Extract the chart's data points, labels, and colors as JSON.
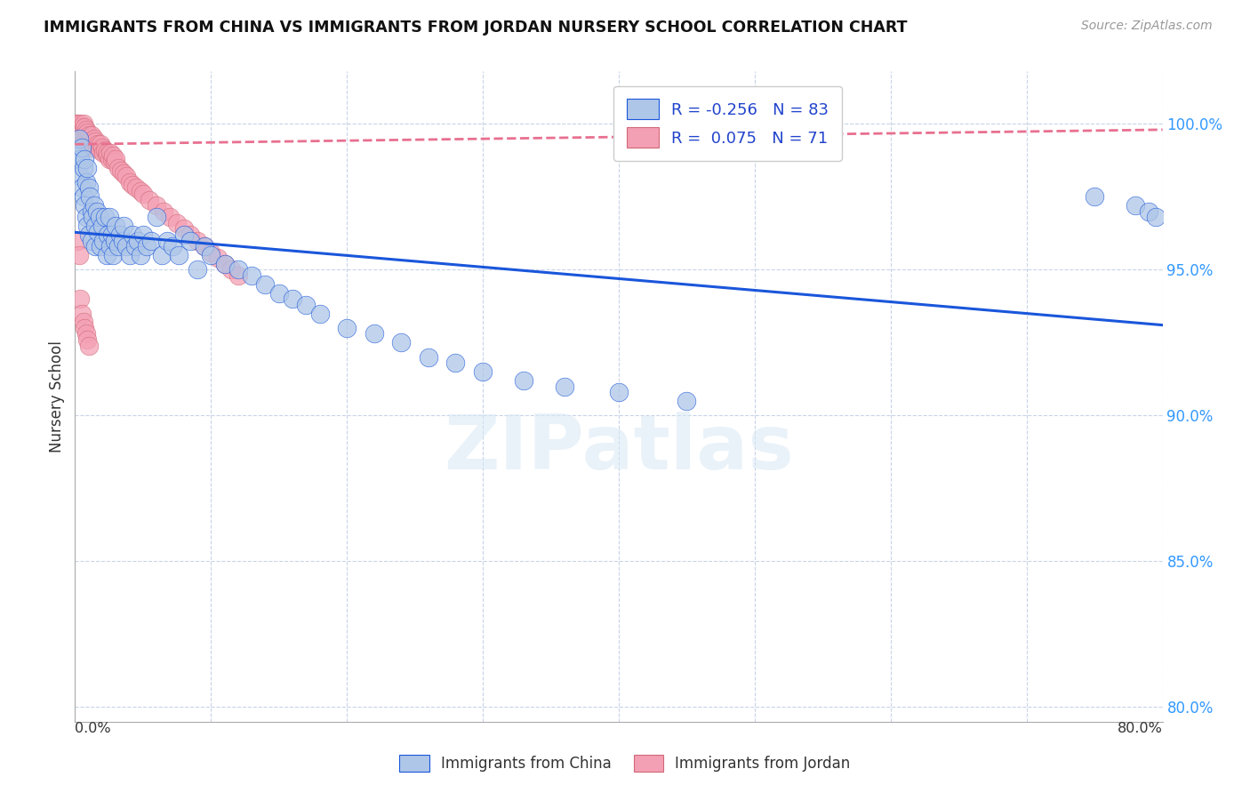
{
  "title": "IMMIGRANTS FROM CHINA VS IMMIGRANTS FROM JORDAN NURSERY SCHOOL CORRELATION CHART",
  "source": "Source: ZipAtlas.com",
  "ylabel": "Nursery School",
  "ytick_values": [
    0.8,
    0.85,
    0.9,
    0.95,
    1.0
  ],
  "xlim": [
    0.0,
    0.8
  ],
  "ylim": [
    0.795,
    1.018
  ],
  "china_R": -0.256,
  "china_N": 83,
  "jordan_R": 0.075,
  "jordan_N": 71,
  "china_color": "#aec6e8",
  "jordan_color": "#f4a0b4",
  "china_line_color": "#1a56db",
  "jordan_line_color": "#e87090",
  "background_color": "#ffffff",
  "grid_color": "#c8d4e8",
  "china_scatter_x": [
    0.002,
    0.003,
    0.004,
    0.004,
    0.005,
    0.005,
    0.006,
    0.006,
    0.007,
    0.007,
    0.008,
    0.008,
    0.009,
    0.009,
    0.01,
    0.01,
    0.011,
    0.012,
    0.012,
    0.013,
    0.014,
    0.015,
    0.015,
    0.016,
    0.017,
    0.018,
    0.019,
    0.02,
    0.021,
    0.022,
    0.023,
    0.024,
    0.025,
    0.026,
    0.027,
    0.028,
    0.029,
    0.03,
    0.032,
    0.033,
    0.035,
    0.036,
    0.038,
    0.04,
    0.042,
    0.044,
    0.046,
    0.048,
    0.05,
    0.053,
    0.056,
    0.06,
    0.064,
    0.068,
    0.072,
    0.076,
    0.08,
    0.085,
    0.09,
    0.095,
    0.1,
    0.11,
    0.12,
    0.13,
    0.14,
    0.15,
    0.16,
    0.17,
    0.18,
    0.2,
    0.22,
    0.24,
    0.26,
    0.28,
    0.3,
    0.33,
    0.36,
    0.4,
    0.45,
    0.75,
    0.78,
    0.79,
    0.795
  ],
  "china_scatter_y": [
    0.99,
    0.995,
    0.988,
    0.982,
    0.992,
    0.978,
    0.985,
    0.975,
    0.988,
    0.972,
    0.98,
    0.968,
    0.985,
    0.965,
    0.978,
    0.962,
    0.975,
    0.97,
    0.96,
    0.968,
    0.972,
    0.965,
    0.958,
    0.97,
    0.963,
    0.968,
    0.958,
    0.965,
    0.96,
    0.968,
    0.955,
    0.962,
    0.968,
    0.958,
    0.962,
    0.955,
    0.96,
    0.965,
    0.958,
    0.962,
    0.96,
    0.965,
    0.958,
    0.955,
    0.962,
    0.958,
    0.96,
    0.955,
    0.962,
    0.958,
    0.96,
    0.968,
    0.955,
    0.96,
    0.958,
    0.955,
    0.962,
    0.96,
    0.95,
    0.958,
    0.955,
    0.952,
    0.95,
    0.948,
    0.945,
    0.942,
    0.94,
    0.938,
    0.935,
    0.93,
    0.928,
    0.925,
    0.92,
    0.918,
    0.915,
    0.912,
    0.91,
    0.908,
    0.905,
    0.975,
    0.972,
    0.97,
    0.968
  ],
  "jordan_scatter_x": [
    0.001,
    0.002,
    0.002,
    0.003,
    0.003,
    0.004,
    0.004,
    0.005,
    0.005,
    0.006,
    0.006,
    0.007,
    0.007,
    0.008,
    0.008,
    0.009,
    0.009,
    0.01,
    0.01,
    0.011,
    0.012,
    0.013,
    0.014,
    0.015,
    0.016,
    0.017,
    0.018,
    0.019,
    0.02,
    0.021,
    0.022,
    0.023,
    0.024,
    0.025,
    0.026,
    0.027,
    0.028,
    0.029,
    0.03,
    0.032,
    0.034,
    0.036,
    0.038,
    0.04,
    0.042,
    0.045,
    0.048,
    0.05,
    0.055,
    0.06,
    0.065,
    0.07,
    0.075,
    0.08,
    0.085,
    0.09,
    0.095,
    0.1,
    0.105,
    0.11,
    0.115,
    0.12,
    0.002,
    0.003,
    0.004,
    0.005,
    0.006,
    0.007,
    0.008,
    0.009,
    0.01
  ],
  "jordan_scatter_y": [
    1.0,
    0.998,
    1.0,
    0.999,
    0.997,
    0.998,
    1.0,
    0.999,
    0.997,
    0.998,
    1.0,
    0.999,
    0.996,
    0.998,
    0.995,
    0.997,
    0.993,
    0.996,
    0.992,
    0.994,
    0.996,
    0.993,
    0.995,
    0.994,
    0.992,
    0.993,
    0.991,
    0.993,
    0.992,
    0.99,
    0.991,
    0.99,
    0.989,
    0.988,
    0.99,
    0.988,
    0.989,
    0.987,
    0.988,
    0.985,
    0.984,
    0.983,
    0.982,
    0.98,
    0.979,
    0.978,
    0.977,
    0.976,
    0.974,
    0.972,
    0.97,
    0.968,
    0.966,
    0.964,
    0.962,
    0.96,
    0.958,
    0.956,
    0.954,
    0.952,
    0.95,
    0.948,
    0.96,
    0.955,
    0.94,
    0.935,
    0.932,
    0.93,
    0.928,
    0.926,
    0.924
  ]
}
